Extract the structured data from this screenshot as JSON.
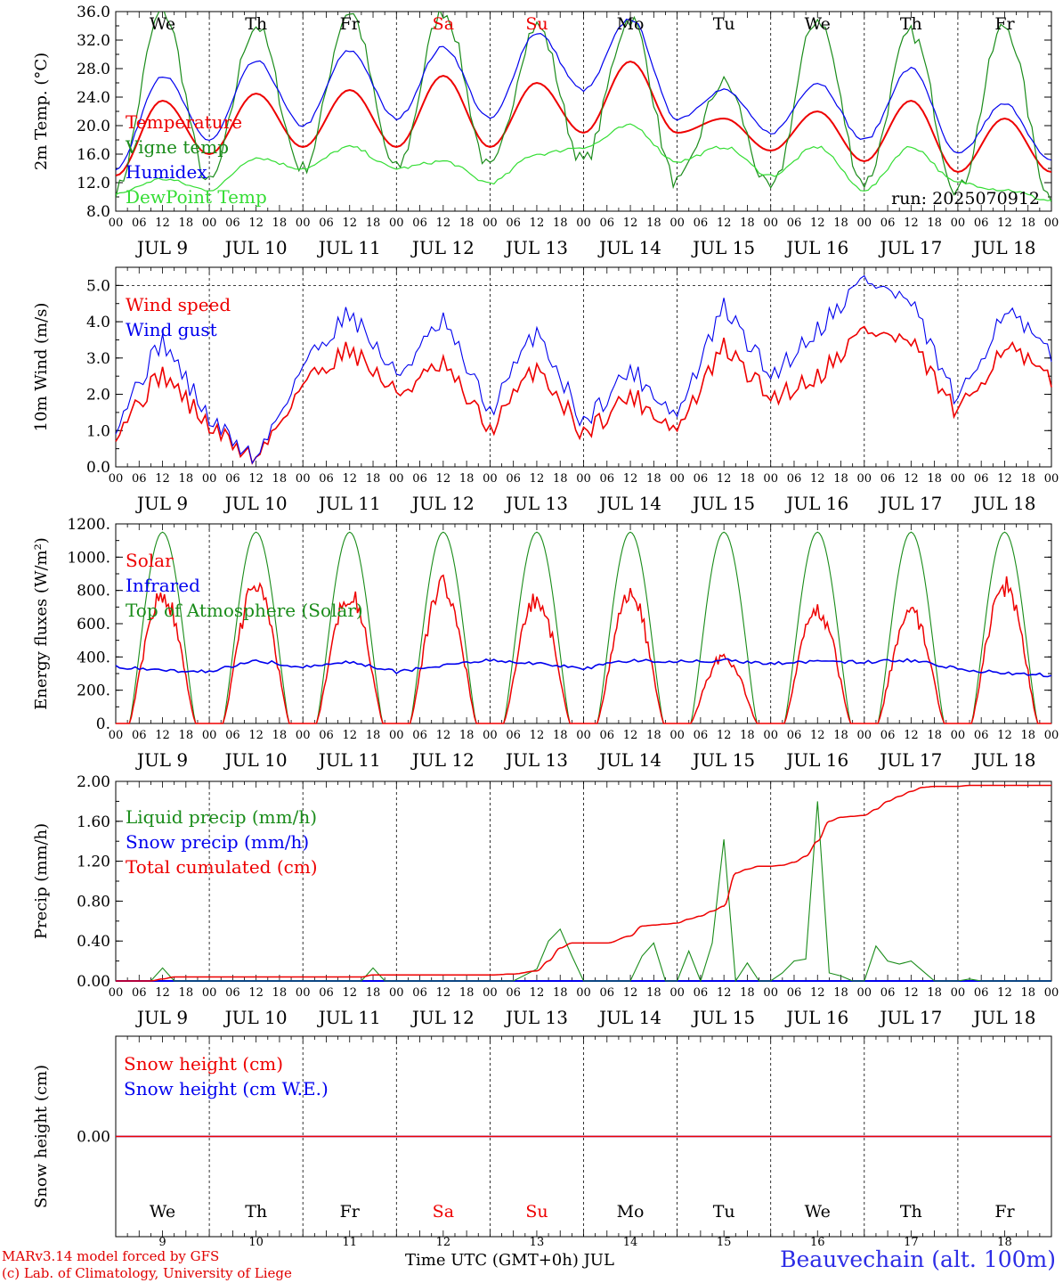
{
  "chart_data": [
    {
      "type": "line",
      "ylabel": "2m Temp. (°C)",
      "ylim": [
        8,
        36
      ],
      "ytick_labels": [
        "8.0",
        "12.0",
        "16.0",
        "20.0",
        "24.0",
        "28.0",
        "32.0",
        "36.0"
      ],
      "ytick_values": [
        8,
        12,
        16,
        20,
        24,
        28,
        32,
        36
      ],
      "x_hours": [
        0,
        12,
        24,
        36,
        48,
        60,
        72,
        84,
        96,
        108,
        120,
        132,
        144,
        156,
        168,
        180,
        192,
        204,
        216,
        228,
        240
      ],
      "series": [
        {
          "name": "Temperature",
          "color": "#ee0000",
          "values": [
            13,
            23.5,
            16,
            24.5,
            17,
            25,
            17,
            27,
            17,
            26,
            19,
            29,
            19,
            21,
            16.5,
            22,
            15,
            23.5,
            13.5,
            21,
            13.5
          ]
        },
        {
          "name": "Vigne temp",
          "color": "#1a8c1a",
          "values": [
            11,
            36,
            12,
            34,
            14,
            36,
            14,
            36,
            14,
            34,
            15,
            35,
            12,
            26,
            11,
            35,
            12,
            33,
            11,
            34,
            10
          ]
        },
        {
          "name": "Humidex",
          "color": "#0000ee",
          "values": [
            14,
            27,
            18,
            29,
            20,
            30.5,
            21,
            31,
            21,
            33,
            25,
            35,
            21,
            25,
            19,
            26,
            18,
            28,
            16,
            23,
            15
          ]
        },
        {
          "name": "DewPoint Temp",
          "color": "#33dd33",
          "values": [
            10.5,
            12.5,
            11,
            15.5,
            14,
            17,
            14,
            15,
            12,
            16,
            17,
            20,
            15,
            17,
            13,
            17,
            11,
            17,
            12,
            11,
            9.5
          ]
        }
      ],
      "annotation": "run: 2025070912"
    },
    {
      "type": "line",
      "ylabel": "10m Wind (m/s)",
      "ylim": [
        0,
        5.5
      ],
      "ytick_labels": [
        "0.0",
        "1.0",
        "2.0",
        "3.0",
        "4.0",
        "5.0"
      ],
      "ytick_values": [
        0,
        1,
        2,
        3,
        4,
        5
      ],
      "x_hours": [
        0,
        12,
        24,
        36,
        48,
        60,
        72,
        84,
        96,
        108,
        120,
        132,
        144,
        156,
        168,
        180,
        192,
        204,
        216,
        228,
        240
      ],
      "series": [
        {
          "name": "Wind speed",
          "color": "#ee0000",
          "values": [
            1,
            2.6,
            1.1,
            0.2,
            2.3,
            3.3,
            2.0,
            2.8,
            1.0,
            2.8,
            0.9,
            2.0,
            1.0,
            3.3,
            1.9,
            2.5,
            3.8,
            3.4,
            1.4,
            3.4,
            2.3
          ]
        },
        {
          "name": "Wind gust",
          "color": "#0000ee",
          "values": [
            1.2,
            3.5,
            1.3,
            0.2,
            2.8,
            4.3,
            2.5,
            4.0,
            1.5,
            3.8,
            1.2,
            2.7,
            1.4,
            4.4,
            2.5,
            3.8,
            5.2,
            4.5,
            1.7,
            4.4,
            3.0
          ]
        }
      ]
    },
    {
      "type": "line",
      "ylabel": "Energy fluxes (W/m²)",
      "ylim": [
        0,
        1200
      ],
      "ytick_labels": [
        "0.",
        "200.",
        "400.",
        "600.",
        "800.",
        "1000.",
        "1200."
      ],
      "ytick_values": [
        0,
        200,
        400,
        600,
        800,
        1000,
        1200
      ],
      "x_hours": [
        0,
        12,
        24,
        36,
        48,
        60,
        72,
        84,
        96,
        108,
        120,
        132,
        144,
        156,
        168,
        180,
        192,
        204,
        216,
        228,
        240
      ],
      "series": [
        {
          "name": "Solar",
          "color": "#ee0000",
          "day_peaks": [
            820,
            870,
            830,
            880,
            790,
            820,
            430,
            720,
            700,
            880
          ]
        },
        {
          "name": "Infrared",
          "color": "#0000ee",
          "values": [
            340,
            320,
            310,
            380,
            340,
            370,
            310,
            350,
            380,
            360,
            330,
            380,
            370,
            380,
            360,
            370,
            370,
            380,
            330,
            300,
            290
          ]
        },
        {
          "name": "Top of Atmosphere (Solar)",
          "color": "#1a8c1a",
          "day_peaks": [
            1150,
            1150,
            1150,
            1150,
            1150,
            1150,
            1150,
            1150,
            1150,
            1150
          ]
        }
      ]
    },
    {
      "type": "line",
      "ylabel": "Precip (mm/h)",
      "ylim": [
        0,
        2
      ],
      "ytick_labels": [
        "0.00",
        "0.40",
        "0.80",
        "1.20",
        "1.60",
        "2.00"
      ],
      "ytick_values": [
        0,
        0.4,
        0.8,
        1.2,
        1.6,
        2.0
      ],
      "series": [
        {
          "name": "Liquid precip (mm/h)",
          "color": "#1a8c1a",
          "x": [
            0,
            9,
            12,
            15,
            60,
            63,
            66,
            69,
            96,
            102,
            108,
            111,
            114,
            117,
            120,
            126,
            132,
            135,
            138,
            141,
            144,
            147,
            150,
            153,
            156,
            159,
            162,
            165,
            168,
            171,
            174,
            177,
            180,
            183,
            186,
            189,
            192,
            195,
            198,
            201,
            204,
            207,
            210,
            213,
            216,
            219,
            222,
            225,
            228,
            231,
            240
          ],
          "values": [
            0,
            0,
            0.13,
            0,
            0,
            0,
            0.13,
            0,
            0,
            0,
            0.12,
            0.4,
            0.52,
            0.25,
            0,
            0,
            0,
            0.25,
            0.38,
            0,
            0,
            0.3,
            0,
            0.38,
            1.42,
            0,
            0.18,
            0,
            0,
            0.08,
            0.2,
            0.22,
            1.8,
            0.08,
            0.05,
            0,
            0,
            0.35,
            0.2,
            0.17,
            0.2,
            0.1,
            0,
            0,
            0,
            0.02,
            0,
            0,
            0,
            0,
            0
          ]
        },
        {
          "name": "Snow precip (mm/h)",
          "color": "#0000ee",
          "x": [
            0,
            240
          ],
          "values": [
            0,
            0
          ]
        },
        {
          "name": "Total cumulated (cm)",
          "color": "#ee0000",
          "x": [
            0,
            9,
            12,
            15,
            60,
            63,
            66,
            69,
            96,
            102,
            108,
            111,
            114,
            117,
            120,
            126,
            132,
            135,
            138,
            141,
            144,
            147,
            150,
            153,
            156,
            159,
            162,
            165,
            168,
            171,
            174,
            177,
            180,
            183,
            186,
            189,
            192,
            195,
            198,
            201,
            204,
            207,
            210,
            213,
            216,
            219,
            222,
            225,
            228,
            231,
            240
          ],
          "values": [
            0,
            0,
            0.02,
            0.04,
            0.04,
            0.04,
            0.06,
            0.06,
            0.06,
            0.07,
            0.1,
            0.2,
            0.33,
            0.38,
            0.38,
            0.38,
            0.45,
            0.55,
            0.56,
            0.57,
            0.58,
            0.62,
            0.65,
            0.7,
            0.75,
            1.08,
            1.12,
            1.15,
            1.15,
            1.16,
            1.19,
            1.25,
            1.4,
            1.6,
            1.64,
            1.65,
            1.66,
            1.72,
            1.8,
            1.85,
            1.9,
            1.94,
            1.95,
            1.95,
            1.95,
            1.96,
            1.96,
            1.96,
            1.96,
            1.96,
            1.96
          ]
        }
      ]
    },
    {
      "type": "line",
      "ylabel": "Snow height (cm)",
      "ytick_labels": [
        "0.00"
      ],
      "ytick_values": [
        0
      ],
      "series": [
        {
          "name": "Snow height (cm)",
          "color": "#ee0000",
          "x": [
            0,
            240
          ],
          "values": [
            0,
            0
          ]
        },
        {
          "name": "Snow height (cm W.E.)",
          "color": "#0000ee",
          "x": [
            0,
            240
          ],
          "values": [
            0,
            0
          ]
        }
      ]
    }
  ],
  "days": [
    {
      "abbr": "We",
      "date": "JUL  9",
      "num": "9",
      "weekend": false
    },
    {
      "abbr": "Th",
      "date": "JUL 10",
      "num": "10",
      "weekend": false
    },
    {
      "abbr": "Fr",
      "date": "JUL 11",
      "num": "11",
      "weekend": false
    },
    {
      "abbr": "Sa",
      "date": "JUL 12",
      "num": "12",
      "weekend": true
    },
    {
      "abbr": "Su",
      "date": "JUL 13",
      "num": "13",
      "weekend": true
    },
    {
      "abbr": "Mo",
      "date": "JUL 14",
      "num": "14",
      "weekend": false
    },
    {
      "abbr": "Tu",
      "date": "JUL 15",
      "num": "15",
      "weekend": false
    },
    {
      "abbr": "We",
      "date": "JUL 16",
      "num": "16",
      "weekend": false
    },
    {
      "abbr": "Th",
      "date": "JUL 17",
      "num": "17",
      "weekend": false
    },
    {
      "abbr": "Fr",
      "date": "JUL 18",
      "num": "18",
      "weekend": false
    }
  ],
  "hour_labels": [
    "00",
    "06",
    "12",
    "18"
  ],
  "colors": {
    "weekday": "#000000",
    "weekend": "#ee0000"
  },
  "footer": {
    "model": "MARv3.14 model forced by GFS",
    "lab": "(c) Lab. of Climatology, University of Liege",
    "xlabel": "Time UTC (GMT+0h) JUL",
    "station": "Beauvechain (alt. 100m)"
  }
}
